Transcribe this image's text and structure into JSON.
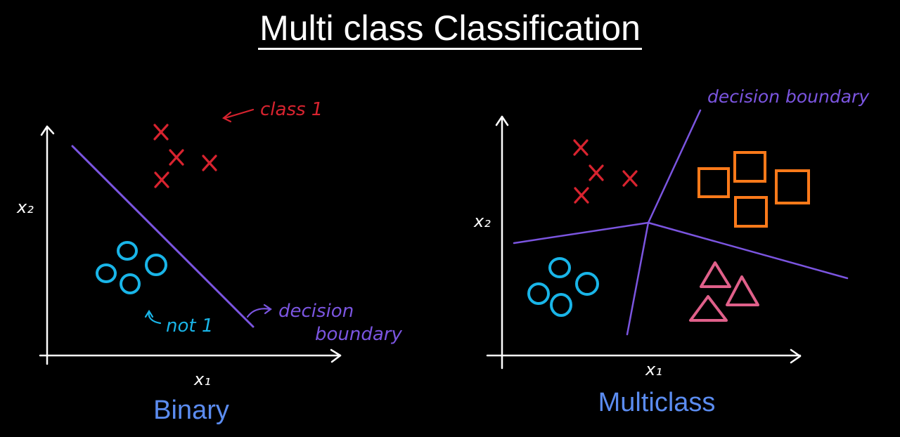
{
  "title": "Multi class Classification",
  "colors": {
    "background": "#000000",
    "axes": "#ffffff",
    "class_x": "#d8232f",
    "circle": "#19b5e8",
    "square": "#ff7a1a",
    "triangle": "#e0608a",
    "boundary": "#7b55e0",
    "caption": "#5b8cf0"
  },
  "binary": {
    "caption": "Binary",
    "x_axis_label": "x₁",
    "y_axis_label": "x₂",
    "class_label": "class 1",
    "other_label": "not 1",
    "boundary_label_line1": "decision",
    "boundary_label_line2": "boundary"
  },
  "multiclass": {
    "caption": "Multiclass",
    "x_axis_label": "x₁",
    "y_axis_label": "x₂",
    "boundary_label": "decision boundary"
  }
}
